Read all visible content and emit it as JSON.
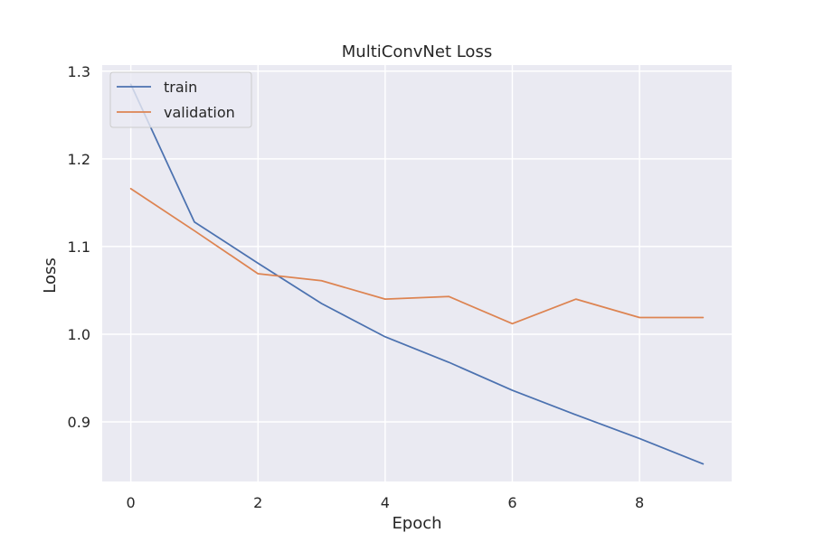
{
  "chart_data": {
    "type": "line",
    "title": "MultiConvNet Loss",
    "xlabel": "Epoch",
    "ylabel": "Loss",
    "xlim": [
      -0.45,
      9.45
    ],
    "ylim": [
      0.832,
      1.307
    ],
    "xticks": [
      0,
      2,
      4,
      6,
      8
    ],
    "xtick_labels": [
      "0",
      "2",
      "4",
      "6",
      "8"
    ],
    "yticks": [
      0.9,
      1.0,
      1.1,
      1.2,
      1.3
    ],
    "ytick_labels": [
      "0.9",
      "1.0",
      "1.1",
      "1.2",
      "1.3"
    ],
    "grid": true,
    "legend_position": "top-left",
    "background_color": "#eaeaf2",
    "grid_color": "#ffffff",
    "x": [
      0,
      1,
      2,
      3,
      4,
      5,
      6,
      7,
      8,
      9
    ],
    "series": [
      {
        "name": "train",
        "color": "#4c72b0",
        "values": [
          1.285,
          1.128,
          1.081,
          1.035,
          0.997,
          0.968,
          0.936,
          0.908,
          0.881,
          0.852
        ]
      },
      {
        "name": "validation",
        "color": "#dd8452",
        "values": [
          1.166,
          1.118,
          1.069,
          1.061,
          1.04,
          1.043,
          1.012,
          1.04,
          1.019,
          1.019
        ]
      }
    ]
  }
}
